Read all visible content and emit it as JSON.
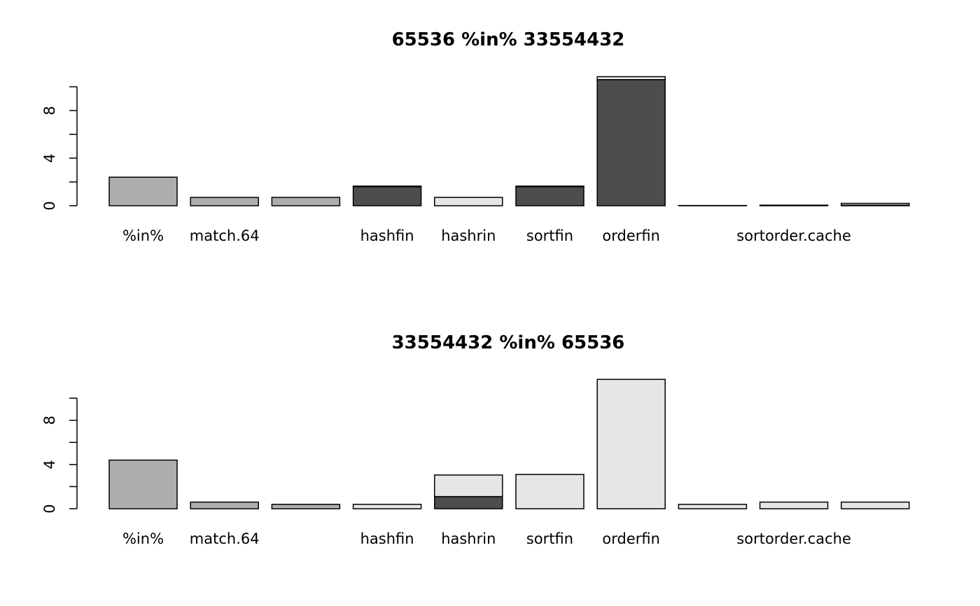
{
  "colors": {
    "dark": "#4d4d4d",
    "medium": "#aeaeae",
    "light": "#e6e6e6",
    "axis": "#000000",
    "background": "#ffffff"
  },
  "chart_data": [
    {
      "type": "bar",
      "stacked": true,
      "title": "65536 %in% 33554432",
      "xlabel": "",
      "ylabel": "",
      "ylim": [
        0,
        10
      ],
      "yticks": [
        0,
        2,
        4,
        6,
        8,
        10
      ],
      "ytick_labels": [
        "0",
        "4",
        "8"
      ],
      "ytick_label_values": [
        0,
        4,
        8
      ],
      "categories": [
        "%in%",
        "match.64",
        "",
        "hashfin",
        "hashrin",
        "sortfin",
        "orderfin",
        "",
        "sortorder.cache",
        ""
      ],
      "bars": [
        {
          "segments": [
            {
              "value": 2.4,
              "color": "medium"
            }
          ]
        },
        {
          "segments": [
            {
              "value": 0.7,
              "color": "medium"
            }
          ]
        },
        {
          "segments": [
            {
              "value": 0.7,
              "color": "medium"
            }
          ]
        },
        {
          "segments": [
            {
              "value": 1.6,
              "color": "dark"
            },
            {
              "value": 0.05,
              "color": "light"
            }
          ]
        },
        {
          "segments": [
            {
              "value": 0.7,
              "color": "light"
            }
          ]
        },
        {
          "segments": [
            {
              "value": 1.6,
              "color": "dark"
            },
            {
              "value": 0.05,
              "color": "light"
            }
          ]
        },
        {
          "segments": [
            {
              "value": 10.6,
              "color": "dark"
            },
            {
              "value": 0.25,
              "color": "light"
            }
          ]
        },
        {
          "segments": [
            {
              "value": 0.02,
              "color": "light"
            }
          ]
        },
        {
          "segments": [
            {
              "value": 0.05,
              "color": "light"
            }
          ]
        },
        {
          "segments": [
            {
              "value": 0.05,
              "color": "dark"
            },
            {
              "value": 0.15,
              "color": "light"
            }
          ]
        }
      ]
    },
    {
      "type": "bar",
      "stacked": true,
      "title": "33554432 %in% 65536",
      "xlabel": "",
      "ylabel": "",
      "ylim": [
        0,
        10
      ],
      "yticks": [
        0,
        2,
        4,
        6,
        8,
        10
      ],
      "ytick_labels": [
        "0",
        "4",
        "8"
      ],
      "ytick_label_values": [
        0,
        4,
        8
      ],
      "categories": [
        "%in%",
        "match.64",
        "",
        "hashfin",
        "hashrin",
        "sortfin",
        "orderfin",
        "",
        "sortorder.cache",
        ""
      ],
      "bars": [
        {
          "segments": [
            {
              "value": 4.4,
              "color": "medium"
            }
          ]
        },
        {
          "segments": [
            {
              "value": 0.6,
              "color": "medium"
            }
          ]
        },
        {
          "segments": [
            {
              "value": 0.4,
              "color": "medium"
            }
          ]
        },
        {
          "segments": [
            {
              "value": 0.4,
              "color": "light"
            }
          ]
        },
        {
          "segments": [
            {
              "value": 1.1,
              "color": "dark"
            },
            {
              "value": 1.95,
              "color": "light"
            }
          ]
        },
        {
          "segments": [
            {
              "value": 3.1,
              "color": "light"
            }
          ]
        },
        {
          "segments": [
            {
              "value": 11.7,
              "color": "light"
            }
          ]
        },
        {
          "segments": [
            {
              "value": 0.4,
              "color": "light"
            }
          ]
        },
        {
          "segments": [
            {
              "value": 0.6,
              "color": "light"
            }
          ]
        },
        {
          "segments": [
            {
              "value": 0.6,
              "color": "light"
            }
          ]
        }
      ]
    }
  ]
}
